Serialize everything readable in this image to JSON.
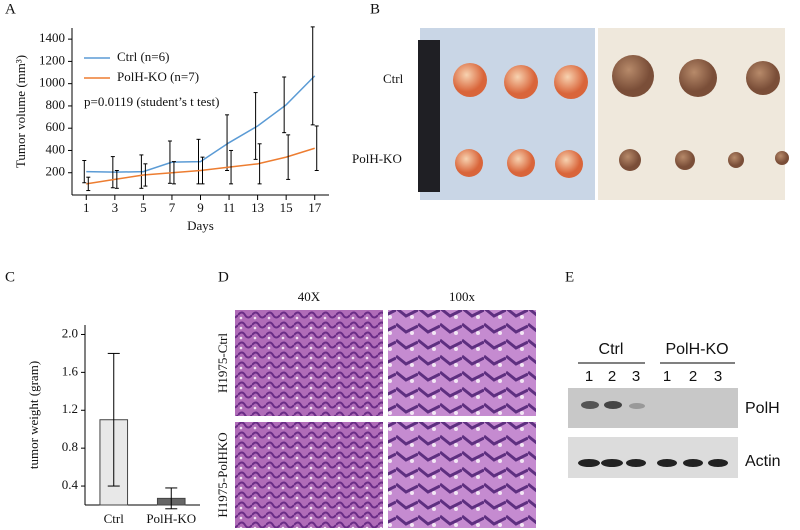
{
  "chart_data": [
    {
      "type": "line",
      "x_label": "Days",
      "y_label": "Tumor volume (mm³)",
      "annotation": "p=0.0119 (student’s t test)",
      "x": [
        1,
        3,
        5,
        7,
        9,
        11,
        13,
        15,
        17
      ],
      "xlim": [
        0,
        18
      ],
      "xticks": [
        1,
        3,
        5,
        7,
        9,
        11,
        13,
        15,
        17
      ],
      "ylim": [
        0,
        1500
      ],
      "yticks": [
        200,
        400,
        600,
        800,
        1000,
        1200,
        1400
      ],
      "legend": "upper left",
      "series": [
        {
          "name": "Ctrl (n=6)",
          "color": "#5b9bd5",
          "values": [
            210,
            205,
            210,
            295,
            300,
            470,
            620,
            810,
            1070
          ],
          "errors": [
            100,
            140,
            150,
            190,
            200,
            250,
            300,
            250,
            440
          ]
        },
        {
          "name": "PolH-KO (n=7)",
          "color": "#ed7d31",
          "values": [
            100,
            140,
            180,
            200,
            220,
            250,
            280,
            340,
            420
          ],
          "errors": [
            60,
            80,
            100,
            100,
            120,
            150,
            180,
            200,
            200
          ]
        }
      ]
    },
    {
      "type": "bar",
      "y_label": "tumor weight (gram)",
      "categories": [
        "Ctrl",
        "PolH-KO"
      ],
      "values": [
        1.1,
        0.27
      ],
      "errors": [
        0.7,
        0.11
      ],
      "colors": [
        "#e8e8e8",
        "#666666"
      ],
      "ylim": [
        0.2,
        2.1
      ],
      "yticks": [
        0.4,
        0.8,
        1.2,
        1.6,
        {
          "value": 2,
          "label": "2.0"
        }
      ]
    }
  ],
  "panels": {
    "a": "A",
    "b": "B",
    "c": "C",
    "d": "D",
    "e": "E",
    "b_rows": [
      "Ctrl",
      "PolH-KO"
    ],
    "d_columns": [
      "40X",
      "100x"
    ],
    "d_rows": [
      "H1975-Ctrl",
      "H1975-PolHKO"
    ],
    "e_groups": [
      "Ctrl",
      "PolH-KO"
    ],
    "e_lanes": [
      "1",
      "2",
      "3",
      "1",
      "2",
      "3"
    ],
    "e_bands": [
      "PolH",
      "Actin"
    ]
  }
}
